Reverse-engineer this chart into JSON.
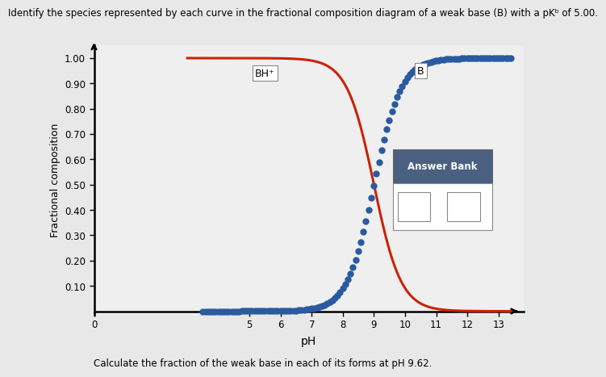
{
  "pKb": 5.0,
  "pKa": 9.0,
  "xlabel": "pH",
  "ylabel": "Fractional composition",
  "yticks": [
    0.1,
    0.2,
    0.3,
    0.4,
    0.5,
    0.6,
    0.7,
    0.8,
    0.9,
    1.0
  ],
  "xticks": [
    0,
    5,
    6,
    7,
    8,
    9,
    10,
    11,
    12,
    13
  ],
  "label_BHplus": "BH⁺",
  "label_B": "B",
  "color_BHplus": "#cc2200",
  "color_B": "#2a5a9f",
  "subtitle": "Calculate the fraction of the weak base in each of its forms at pH 9.62.",
  "answer_bank_title": "Answer Bank",
  "answer_bank_header_color": "#4a6080",
  "bg_color": "#e8e8e8",
  "plot_bg_color": "#efefef",
  "title_line": "Identify the species represented by each curve in the fractional composition diagram of a weak base (B) with a pKᵇ of 5.00."
}
